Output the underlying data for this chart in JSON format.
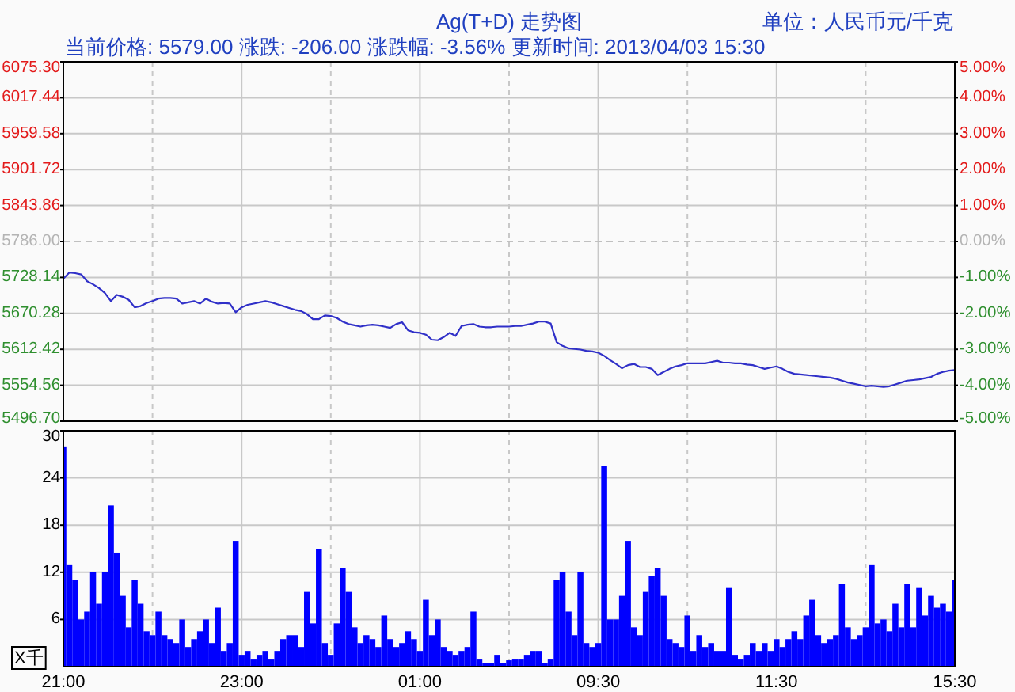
{
  "chart_data": [
    {
      "type": "line",
      "title": "Ag(T+D) 走势图",
      "subtitle": "当前价格: 5579.00 涨跌: -206.00 涨跌幅: -3.56% 更新时间: 2013/04/03 15:30",
      "annotations": [
        "单位：人民币元/千克"
      ],
      "categories": [
        null,
        null,
        null,
        null,
        null,
        null,
        null,
        null,
        null,
        null,
        null,
        null,
        null,
        null,
        null,
        null,
        null,
        null,
        null,
        null,
        null,
        null,
        null,
        null,
        null,
        null,
        null,
        null,
        null,
        null,
        null,
        null,
        null,
        null,
        null,
        null,
        null,
        null,
        null,
        null,
        null,
        null,
        null,
        null,
        null,
        null,
        null,
        null,
        null,
        null,
        null,
        null,
        null,
        null,
        null,
        null,
        null,
        null,
        null,
        null,
        null,
        null,
        null,
        null,
        null,
        null,
        null,
        null,
        null,
        null,
        null,
        null,
        null,
        null,
        null,
        null,
        null,
        null,
        null,
        null,
        null,
        null,
        null,
        null,
        null,
        null,
        null,
        null,
        null,
        null,
        null,
        null,
        null,
        null,
        null,
        null,
        null,
        null,
        null,
        null,
        null,
        null,
        null,
        null,
        null,
        null,
        null,
        null,
        null,
        null,
        null,
        null,
        null,
        null,
        null,
        null,
        null,
        null,
        null,
        null,
        null,
        null,
        null,
        null,
        null,
        null,
        null,
        null,
        null,
        null,
        null,
        null,
        null,
        null,
        null,
        null,
        null,
        null,
        null,
        null,
        null,
        null,
        null,
        null,
        null,
        null,
        null,
        null,
        null,
        null,
        null
      ],
      "ylim": [
        5496.7,
        6075.3
      ],
      "yticks": [
        {
          "value": 6075.3,
          "label": "6075.30"
        },
        {
          "value": 6017.44,
          "label": "6017.44"
        },
        {
          "value": 5959.58,
          "label": "5959.58"
        },
        {
          "value": 5901.72,
          "label": "5901.72"
        },
        {
          "value": 5843.86,
          "label": "5843.86"
        },
        {
          "value": 5786,
          "label": "5786.00"
        },
        {
          "value": 5728.14,
          "label": "5728.14"
        },
        {
          "value": 5670.28,
          "label": "5670.28"
        },
        {
          "value": 5612.42,
          "label": "5612.42"
        },
        {
          "value": 5554.56,
          "label": "5554.56"
        },
        {
          "value": 5496.7,
          "label": "5496.70"
        }
      ],
      "y2lim": [
        -5,
        5
      ],
      "y2ticks": [
        {
          "value": 5,
          "label": "5.00%"
        },
        {
          "value": 4,
          "label": "4.00%"
        },
        {
          "value": 3,
          "label": "3.00%"
        },
        {
          "value": 2,
          "label": "2.00%"
        },
        {
          "value": 1,
          "label": "1.00%"
        },
        {
          "value": 0,
          "label": "0.00%"
        },
        {
          "value": -1,
          "label": "-1.00%"
        },
        {
          "value": -2,
          "label": "-2.00%"
        },
        {
          "value": -3,
          "label": "-3.00%"
        },
        {
          "value": -4,
          "label": "-4.00%"
        },
        {
          "value": -5,
          "label": "-5.00%"
        }
      ],
      "ref_lines": [
        {
          "axis": "y",
          "value": 5786,
          "line_style": "dashed",
          "color": "#c0c0c0"
        }
      ],
      "grid": true,
      "series": [
        {
          "color": "#3030c8",
          "values": [
            5726,
            5736,
            5735,
            5733,
            5722,
            5717,
            5711,
            5703,
            5690,
            5700,
            5697,
            5692,
            5680,
            5682,
            5687,
            5690,
            5694,
            5695,
            5695,
            5694,
            5686,
            5688,
            5690,
            5686,
            5694,
            5689,
            5686,
            5687,
            5686,
            5672,
            5680,
            5684,
            5686,
            5688,
            5690,
            5688,
            5685,
            5682,
            5679,
            5676,
            5674,
            5669,
            5661,
            5661,
            5667,
            5666,
            5663,
            5657,
            5653,
            5651,
            5649,
            5651,
            5652,
            5651,
            5649,
            5647,
            5653,
            5656,
            5643,
            5640,
            5639,
            5636,
            5628,
            5627,
            5632,
            5639,
            5634,
            5650,
            5652,
            5653,
            5649,
            5648,
            5648,
            5649,
            5649,
            5649,
            5650,
            5650,
            5652,
            5654,
            5657,
            5657,
            5654,
            5624,
            5618,
            5614,
            5613,
            5612,
            5610,
            5609,
            5607,
            5602,
            5595,
            5589,
            5582,
            5587,
            5589,
            5584,
            5584,
            5581,
            5571,
            5576,
            5581,
            5585,
            5587,
            5590,
            5590,
            5590,
            5590,
            5592,
            5594,
            5591,
            5591,
            5590,
            5590,
            5588,
            5587,
            5584,
            5581,
            5583,
            5585,
            5581,
            5576,
            5573,
            5572,
            5571,
            5570,
            5569,
            5568,
            5567,
            5565,
            5562,
            5559,
            5557,
            5555,
            5553,
            5554,
            5553,
            5552,
            5553,
            5556,
            5559,
            5562,
            5563,
            5564,
            5566,
            5568,
            5573,
            5576,
            5578,
            5579
          ]
        }
      ]
    },
    {
      "type": "bar",
      "ylabel": "X千",
      "categories": [
        "21:00",
        null,
        null,
        null,
        null,
        null,
        null,
        null,
        null,
        null,
        null,
        null,
        null,
        null,
        null,
        null,
        null,
        null,
        null,
        null,
        null,
        null,
        null,
        null,
        null,
        null,
        null,
        null,
        null,
        null,
        "23:00",
        null,
        null,
        null,
        null,
        null,
        null,
        null,
        null,
        null,
        null,
        null,
        null,
        null,
        null,
        null,
        null,
        null,
        null,
        null,
        null,
        null,
        null,
        null,
        null,
        null,
        null,
        null,
        null,
        null,
        "01:00",
        null,
        null,
        null,
        null,
        null,
        null,
        null,
        null,
        null,
        null,
        null,
        null,
        null,
        null,
        null,
        null,
        null,
        null,
        null,
        null,
        null,
        null,
        null,
        null,
        null,
        null,
        null,
        null,
        null,
        "09:30",
        null,
        null,
        null,
        null,
        null,
        null,
        null,
        null,
        null,
        null,
        null,
        null,
        null,
        null,
        null,
        null,
        null,
        null,
        null,
        null,
        null,
        null,
        null,
        null,
        null,
        null,
        null,
        null,
        null,
        "11:30",
        null,
        null,
        null,
        null,
        null,
        null,
        null,
        null,
        null,
        null,
        null,
        null,
        null,
        null,
        null,
        null,
        null,
        null,
        null,
        null,
        null,
        null,
        null,
        null,
        null,
        null,
        null,
        null,
        null,
        "15:30"
      ],
      "ylim": [
        0,
        30
      ],
      "yticks": [
        6,
        12,
        18,
        24,
        30
      ],
      "grid": true,
      "series": [
        {
          "color": "#0000ff",
          "values": [
            28,
            13,
            11,
            6,
            7,
            12,
            8,
            12,
            20.5,
            14.5,
            9,
            5,
            11,
            8,
            4.5,
            4,
            7,
            4,
            3.5,
            3,
            6,
            2.5,
            3.5,
            4.5,
            6,
            3,
            7.5,
            2,
            3,
            16,
            1.5,
            2,
            1,
            1.5,
            2,
            1,
            2,
            3.5,
            4,
            4,
            2.5,
            9.5,
            5.5,
            15,
            3,
            1.5,
            5.5,
            12.5,
            9.5,
            5,
            3,
            4,
            3.5,
            2.5,
            6.5,
            3.5,
            2.5,
            3,
            4.5,
            3.5,
            2,
            8.5,
            4,
            6,
            2.5,
            2,
            1.5,
            2,
            2.5,
            7,
            1,
            0.5,
            0.5,
            1.5,
            0.5,
            0.8,
            1,
            1,
            1.5,
            2,
            2,
            0.5,
            1,
            11,
            12,
            7,
            4,
            12,
            3,
            2.5,
            3,
            25.5,
            6,
            6,
            9,
            16,
            5,
            4,
            9.5,
            11.5,
            12.5,
            9,
            3.5,
            3,
            2.5,
            6.5,
            2,
            4,
            2.5,
            3,
            2,
            2,
            10,
            1.5,
            1,
            1.5,
            3,
            2,
            3,
            2,
            3.5,
            2.5,
            3.5,
            4.5,
            3.5,
            6.5,
            8.5,
            4,
            3,
            3.5,
            4,
            10.5,
            5,
            3.5,
            4,
            5,
            13,
            5.5,
            6,
            4.5,
            8,
            5,
            10.5,
            5,
            10,
            6.5,
            9,
            7.5,
            8,
            7,
            11
          ]
        }
      ]
    }
  ]
}
